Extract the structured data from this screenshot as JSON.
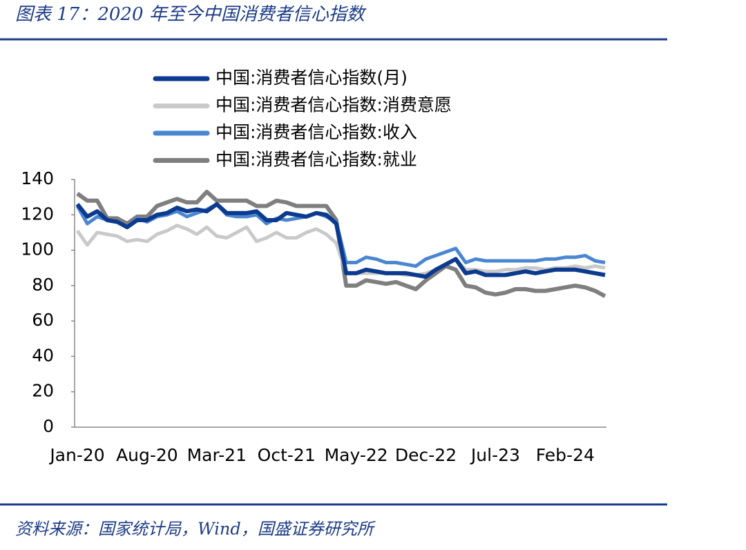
{
  "chart_data": {
    "type": "line",
    "title": "图表 17：2020 年至今中国消费者信心指数",
    "source": "资料来源：国家统计局，Wind，国盛证券研究所",
    "categories": [
      "Jan-20",
      null,
      null,
      null,
      null,
      null,
      null,
      "Aug-20",
      null,
      null,
      null,
      null,
      null,
      null,
      "Mar-21",
      null,
      null,
      null,
      null,
      null,
      null,
      "Oct-21",
      null,
      null,
      null,
      null,
      null,
      null,
      "May-22",
      null,
      null,
      null,
      null,
      null,
      null,
      "Dec-22",
      null,
      null,
      null,
      null,
      null,
      null,
      "Jul-23",
      null,
      null,
      null,
      null,
      null,
      null,
      "Feb-24",
      null,
      null,
      null,
      null
    ],
    "ylim": [
      0,
      140
    ],
    "yticks": [
      0,
      20,
      40,
      60,
      80,
      100,
      120,
      140
    ],
    "legend": "top",
    "series": [
      {
        "name": "中国:消费者信心指数(月)",
        "color": "#0c3a8e",
        "width": 6,
        "values": [
          126,
          119,
          122,
          117,
          116,
          113,
          117,
          117,
          120,
          121,
          124,
          122,
          123,
          122,
          126,
          121,
          121,
          121,
          122,
          117,
          117,
          121,
          120,
          119,
          121,
          120,
          115,
          87,
          87,
          89,
          88,
          87,
          87,
          87,
          86,
          85,
          89,
          92,
          95,
          87,
          88,
          86,
          86,
          86,
          87,
          88,
          87,
          88,
          89,
          89,
          89,
          88,
          87,
          86
        ]
      },
      {
        "name": "中国:消费者信心指数:消费意愿",
        "color": "#c9c9c9",
        "width": 5,
        "values": [
          111,
          103,
          110,
          109,
          108,
          105,
          106,
          105,
          109,
          111,
          114,
          112,
          109,
          113,
          108,
          107,
          110,
          113,
          105,
          107,
          110,
          107,
          107,
          110,
          112,
          109,
          104,
          87,
          87,
          87,
          87,
          87,
          87,
          86,
          86,
          87,
          89,
          92,
          95,
          89,
          89,
          88,
          88,
          89,
          89,
          90,
          90,
          89,
          90,
          90,
          91,
          90,
          91,
          90
        ]
      },
      {
        "name": "中国:消费者信心指数:收入",
        "color": "#4b86d1",
        "width": 5,
        "values": [
          125,
          115,
          119,
          117,
          116,
          113,
          118,
          116,
          119,
          120,
          122,
          119,
          121,
          123,
          126,
          120,
          119,
          119,
          120,
          115,
          118,
          117,
          118,
          119,
          121,
          119,
          116,
          93,
          93,
          96,
          95,
          93,
          93,
          92,
          91,
          95,
          97,
          99,
          101,
          93,
          95,
          94,
          94,
          94,
          94,
          94,
          94,
          95,
          95,
          96,
          96,
          97,
          94,
          93
        ]
      },
      {
        "name": "中国:消费者信心指数:就业",
        "color": "#7f7f7f",
        "width": 6,
        "values": [
          132,
          128,
          128,
          118,
          118,
          115,
          119,
          119,
          125,
          127,
          129,
          127,
          127,
          133,
          128,
          128,
          128,
          128,
          125,
          125,
          128,
          127,
          125,
          125,
          125,
          125,
          117,
          80,
          80,
          83,
          82,
          81,
          82,
          80,
          78,
          83,
          87,
          91,
          89,
          80,
          79,
          76,
          75,
          76,
          78,
          78,
          77,
          77,
          78,
          79,
          80,
          79,
          77,
          74
        ]
      }
    ]
  }
}
